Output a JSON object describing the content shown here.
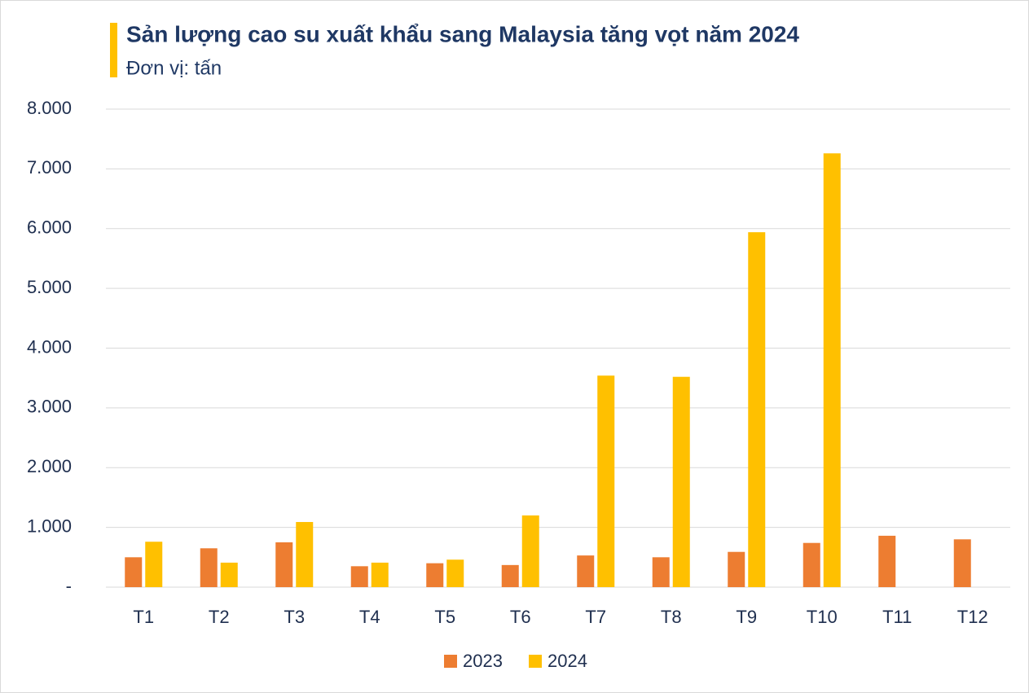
{
  "chart_data": {
    "type": "bar",
    "title": "Sản lượng cao su xuất khẩu sang Malaysia tăng vọt năm 2024",
    "subtitle": "Đơn vị: tấn",
    "categories": [
      "T1",
      "T2",
      "T3",
      "T4",
      "T5",
      "T6",
      "T7",
      "T8",
      "T9",
      "T10",
      "T11",
      "T12"
    ],
    "series": [
      {
        "name": "2023",
        "color": "#ed7d31",
        "values": [
          500,
          650,
          750,
          350,
          400,
          370,
          530,
          500,
          590,
          740,
          860,
          800
        ]
      },
      {
        "name": "2024",
        "color": "#ffc000",
        "values": [
          760,
          410,
          1090,
          410,
          460,
          1200,
          3540,
          3520,
          5940,
          7260,
          null,
          null
        ]
      }
    ],
    "ylim": [
      0,
      8000
    ],
    "yticks": [
      {
        "value": 0,
        "label": "-"
      },
      {
        "value": 1000,
        "label": "1.000"
      },
      {
        "value": 2000,
        "label": "2.000"
      },
      {
        "value": 3000,
        "label": "3.000"
      },
      {
        "value": 4000,
        "label": "4.000"
      },
      {
        "value": 5000,
        "label": "5.000"
      },
      {
        "value": 6000,
        "label": "6.000"
      },
      {
        "value": 7000,
        "label": "7.000"
      },
      {
        "value": 8000,
        "label": "8.000"
      }
    ],
    "grid": true
  }
}
